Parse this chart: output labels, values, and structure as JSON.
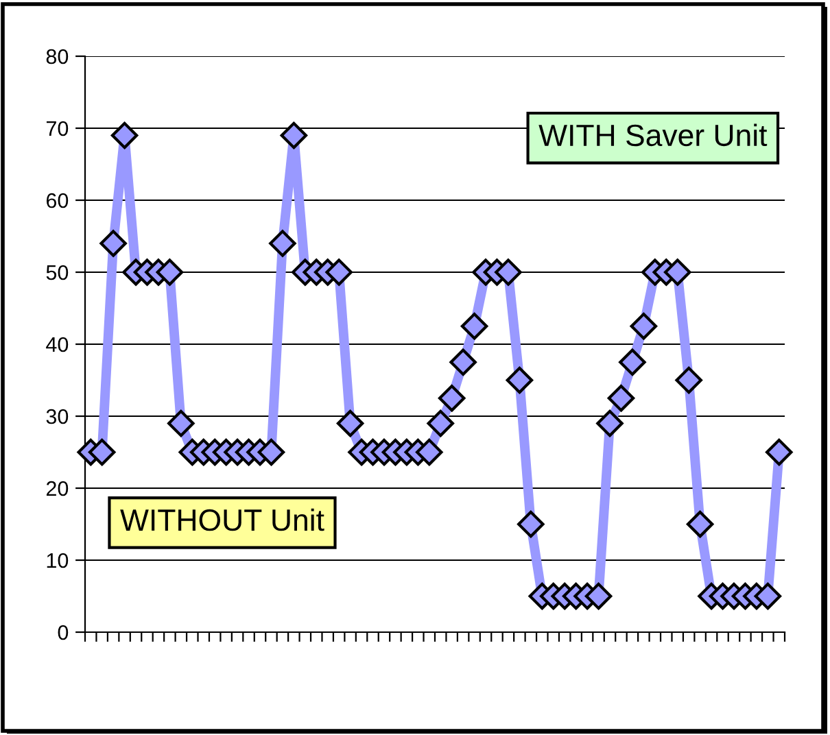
{
  "chart_data": {
    "type": "line",
    "categories": [
      null,
      null,
      null,
      null,
      null,
      null,
      null,
      null,
      null,
      null,
      null,
      null,
      null,
      null,
      null,
      null,
      null,
      null,
      null,
      null,
      null,
      null,
      null,
      null,
      null,
      null,
      null,
      null,
      null,
      null,
      null,
      null,
      null,
      null,
      null,
      null,
      null,
      null,
      null,
      null,
      null,
      null,
      null,
      null,
      null,
      null,
      null,
      null,
      null,
      null,
      null,
      null,
      null,
      null,
      null,
      null,
      null,
      null,
      null,
      null,
      null,
      null
    ],
    "series": [
      {
        "color": "#9999ff",
        "values": [
          25,
          25,
          54,
          69,
          50,
          50,
          50,
          50,
          29,
          25,
          25,
          25,
          25,
          25,
          25,
          25,
          25,
          54,
          69,
          50,
          50,
          50,
          50,
          29,
          25,
          25,
          25,
          25,
          25,
          25,
          25,
          29,
          32.5,
          37.5,
          42.5,
          50,
          50,
          50,
          35,
          15,
          5,
          5,
          5,
          5,
          5,
          5,
          29,
          32.5,
          37.5,
          42.5,
          50,
          50,
          50,
          35,
          15,
          5,
          5,
          5,
          5,
          5,
          5,
          25
        ]
      }
    ],
    "ylim": [
      0,
      80
    ],
    "yticks": [
      0,
      10,
      20,
      30,
      40,
      50,
      60,
      70,
      80
    ],
    "grid": "y",
    "marker": "diamond",
    "line_style": "solid",
    "annotations": [
      "WITH Saver Unit",
      "WITHOUT Unit"
    ]
  }
}
